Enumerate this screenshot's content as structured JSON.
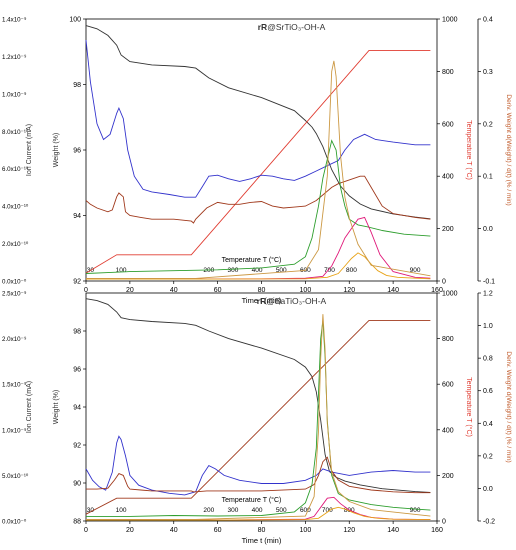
{
  "chart_data": [
    {
      "type": "line",
      "title_prefix": "rR",
      "title_suffix": "@SrTiO₃-OH-A",
      "xlabel": "Time t (min)",
      "xlim": [
        0,
        160
      ],
      "xticks": [
        0,
        20,
        40,
        60,
        80,
        100,
        120,
        140,
        160
      ],
      "axes": {
        "ion": {
          "label": "Ion Current (mA)",
          "lim": [
            0,
            1.4e-09
          ],
          "ticks": [
            "0.0x10⁻⁰",
            "2.0x10⁻¹⁰",
            "4.0x10⁻¹⁰",
            "6.0x10⁻¹⁰",
            "8.0x10⁻¹⁰",
            "1.0x10⁻⁹",
            "1.2x10⁻⁹",
            "1.4x10⁻⁹"
          ]
        },
        "weight": {
          "label": "Weight (%)",
          "lim": [
            92,
            100
          ],
          "ticks": [
            92,
            94,
            96,
            98,
            100
          ]
        },
        "temp": {
          "label": "Temperature T (°C)",
          "lim": [
            0,
            1000
          ],
          "ticks": [
            0,
            200,
            400,
            600,
            800,
            1000
          ]
        },
        "deriv": {
          "label": "Deriv. Weight d(Weight) / d(t) (% / min)",
          "lim": [
            -0.1,
            0.4
          ],
          "ticks": [
            -0.1,
            0.0,
            0.1,
            0.2,
            0.3,
            0.4
          ]
        }
      },
      "temperature_markers": {
        "label": "Temperature T (°C)",
        "values": [
          {
            "label": "30",
            "t": 2
          },
          {
            "label": "100",
            "t": 16
          },
          {
            "label": "200",
            "t": 56
          },
          {
            "label": "300",
            "t": 67
          },
          {
            "label": "400",
            "t": 78
          },
          {
            "label": "500",
            "t": 89
          },
          {
            "label": "600",
            "t": 100
          },
          {
            "label": "700",
            "t": 111
          },
          {
            "label": "800",
            "t": 121
          },
          {
            "label": "900",
            "t": 150
          }
        ]
      },
      "series": [
        {
          "color": "#333333",
          "axis": "weight",
          "x": [
            0,
            5,
            10,
            14,
            16,
            20,
            30,
            45,
            50,
            56,
            65,
            80,
            95,
            100,
            103,
            105,
            108,
            112,
            116,
            120,
            125,
            130,
            140,
            150,
            157
          ],
          "y": [
            99.8,
            99.7,
            99.5,
            99.2,
            98.9,
            98.7,
            98.6,
            98.55,
            98.5,
            98.2,
            97.9,
            97.6,
            97.2,
            96.9,
            96.7,
            96.5,
            96.1,
            95.4,
            94.9,
            94.6,
            94.35,
            94.2,
            94.05,
            93.95,
            93.9
          ]
        },
        {
          "color": "#e03c31",
          "axis": "temp",
          "x": [
            0,
            14,
            48,
            129,
            157
          ],
          "y": [
            30,
            100,
            100,
            880,
            880
          ]
        },
        {
          "color": "#3333cc",
          "axis": "deriv",
          "x": [
            0,
            2,
            5,
            8,
            11,
            14,
            15,
            17,
            19,
            22,
            26,
            30,
            38,
            45,
            50,
            53,
            56,
            60,
            65,
            70,
            75,
            80,
            85,
            90,
            95,
            100,
            105,
            110,
            115,
            118,
            122,
            127,
            132,
            140,
            150,
            157
          ],
          "y": [
            0.36,
            0.28,
            0.2,
            0.17,
            0.18,
            0.22,
            0.23,
            0.21,
            0.15,
            0.1,
            0.075,
            0.07,
            0.065,
            0.06,
            0.06,
            0.08,
            0.1,
            0.102,
            0.095,
            0.09,
            0.095,
            0.102,
            0.1,
            0.095,
            0.092,
            0.1,
            0.11,
            0.12,
            0.13,
            0.15,
            0.17,
            0.18,
            0.17,
            0.165,
            0.16,
            0.16
          ]
        },
        {
          "color": "#a0391c",
          "axis": "ion",
          "x": [
            0,
            2,
            5,
            10,
            12,
            14,
            15,
            17,
            18,
            20,
            25,
            30,
            40,
            48,
            49,
            50,
            55,
            60,
            65,
            70,
            75,
            80,
            85,
            90,
            95,
            100,
            105,
            108,
            112,
            115,
            120,
            125,
            127,
            130,
            135,
            140,
            150,
            157
          ],
          "y": [
            4.3e-10,
            4.1e-10,
            3.9e-10,
            3.7e-10,
            3.8e-10,
            4.5e-10,
            4.7e-10,
            4.5e-10,
            3.7e-10,
            3.5e-10,
            3.4e-10,
            3.3e-10,
            3.3e-10,
            3.2e-10,
            3.1e-10,
            3.3e-10,
            3.9e-10,
            4.2e-10,
            4.1e-10,
            4.1e-10,
            4.2e-10,
            4.25e-10,
            4e-10,
            3.9e-10,
            3.95e-10,
            4e-10,
            4.3e-10,
            4.6e-10,
            5e-10,
            5.2e-10,
            5.4e-10,
            5.6e-10,
            5.6e-10,
            5e-10,
            4e-10,
            3.6e-10,
            3.4e-10,
            3.3e-10
          ]
        },
        {
          "color": "#2e9e2e",
          "axis": "ion",
          "x": [
            0,
            10,
            20,
            40,
            60,
            80,
            95,
            100,
            103,
            106,
            108,
            110,
            112,
            114,
            116,
            118,
            120,
            124,
            128,
            135,
            145,
            157
          ],
          "y": [
            4e-11,
            4.5e-11,
            5e-11,
            5.5e-11,
            6e-11,
            7e-11,
            9e-11,
            1.3e-10,
            2.3e-10,
            4e-10,
            5.5e-10,
            6.5e-10,
            7.5e-10,
            7e-10,
            5e-10,
            4e-10,
            3.3e-10,
            3e-10,
            2.9e-10,
            2.7e-10,
            2.5e-10,
            2.4e-10
          ]
        },
        {
          "color": "#e0197a",
          "axis": "ion",
          "x": [
            0,
            40,
            80,
            100,
            108,
            112,
            115,
            118,
            121,
            124,
            127,
            130,
            134,
            140,
            150,
            157
          ],
          "y": [
            1e-11,
            1e-11,
            1.2e-11,
            1.5e-11,
            2.5e-11,
            8e-11,
            1.5e-10,
            2.3e-10,
            2.8e-10,
            3.3e-10,
            3.4e-10,
            2.6e-10,
            1.4e-10,
            5e-11,
            2e-11,
            1.5e-11
          ]
        },
        {
          "color": "#e8a317",
          "axis": "ion",
          "x": [
            0,
            60,
            100,
            110,
            115,
            118,
            121,
            124,
            127,
            130,
            133,
            137,
            142,
            150,
            157
          ],
          "y": [
            1e-11,
            1e-11,
            1.2e-11,
            2e-11,
            4e-11,
            8e-11,
            1.2e-10,
            1.5e-10,
            1.3e-10,
            9e-11,
            5.5e-11,
            3e-11,
            2e-11,
            1.5e-11,
            1.2e-11
          ]
        },
        {
          "color": "#cc9944",
          "axis": "deriv",
          "x": [
            0,
            50,
            100,
            106,
            110,
            112,
            113,
            114,
            116,
            118,
            120,
            124,
            130,
            157
          ],
          "y": [
            -0.095,
            -0.095,
            -0.08,
            -0.04,
            0.1,
            0.3,
            0.32,
            0.29,
            0.14,
            0.06,
            0.02,
            -0.03,
            -0.07,
            -0.09
          ]
        }
      ]
    },
    {
      "type": "line",
      "title_prefix": "rR",
      "title_suffix": "@BaTiO₃-OH-A",
      "xlabel": "Time t (min)",
      "xlim": [
        0,
        160
      ],
      "xticks": [
        0,
        20,
        40,
        60,
        80,
        100,
        120,
        140,
        160
      ],
      "axes": {
        "ion": {
          "label": "Ion Current (mA)",
          "lim": [
            0,
            2.5e-09
          ],
          "ticks": [
            "0.0x10⁻⁰",
            "5.0x10⁻¹⁰",
            "1.0x10⁻⁹",
            "1.5x10⁻⁹",
            "2.0x10⁻⁹",
            "2.5x10⁻⁹"
          ]
        },
        "weight": {
          "label": "Weight (%)",
          "lim": [
            88,
            100
          ],
          "ticks": [
            88,
            90,
            92,
            94,
            96,
            98
          ]
        },
        "temp": {
          "label": "Temperature T (°C)",
          "lim": [
            0,
            1000
          ],
          "ticks": [
            0,
            200,
            400,
            600,
            800,
            1000
          ]
        },
        "deriv": {
          "label": "Deriv. Weight d(Weight) / d(t) (% / min)",
          "lim": [
            -0.2,
            1.2
          ],
          "ticks": [
            -0.2,
            0.0,
            0.2,
            0.4,
            0.6,
            0.8,
            1.0,
            1.2
          ]
        }
      },
      "temperature_markers": {
        "label": "Temperature T (°C)",
        "values": [
          {
            "label": "30",
            "t": 2
          },
          {
            "label": "100",
            "t": 16
          },
          {
            "label": "200",
            "t": 56
          },
          {
            "label": "300",
            "t": 67
          },
          {
            "label": "400",
            "t": 78
          },
          {
            "label": "500",
            "t": 89
          },
          {
            "label": "600",
            "t": 100
          },
          {
            "label": "700",
            "t": 110
          },
          {
            "label": "800",
            "t": 120
          },
          {
            "label": "900",
            "t": 150
          }
        ]
      },
      "series": [
        {
          "color": "#333333",
          "axis": "weight",
          "x": [
            0,
            5,
            10,
            14,
            16,
            20,
            30,
            45,
            50,
            56,
            65,
            80,
            95,
            100,
            103,
            105,
            107,
            109,
            111,
            114,
            118,
            125,
            135,
            150,
            157
          ],
          "y": [
            99.7,
            99.6,
            99.4,
            99.0,
            98.7,
            98.6,
            98.5,
            98.4,
            98.3,
            98.0,
            97.6,
            97.1,
            96.5,
            96.1,
            95.6,
            94.8,
            93.3,
            91.5,
            90.6,
            90.3,
            90.1,
            89.9,
            89.7,
            89.55,
            89.5
          ]
        },
        {
          "color": "#a0391c",
          "axis": "temp",
          "x": [
            0,
            14,
            48,
            129,
            157
          ],
          "y": [
            30,
            100,
            100,
            880,
            880
          ]
        },
        {
          "color": "#3333cc",
          "axis": "deriv",
          "x": [
            0,
            3,
            6,
            9,
            12,
            14,
            15,
            16,
            18,
            20,
            24,
            30,
            38,
            45,
            50,
            53,
            56,
            59,
            63,
            70,
            80,
            90,
            100,
            105,
            108,
            112,
            120,
            130,
            140,
            150,
            157
          ],
          "y": [
            0.12,
            0.05,
            0.01,
            -0.01,
            0.1,
            0.28,
            0.32,
            0.3,
            0.2,
            0.08,
            0.02,
            -0.01,
            -0.03,
            -0.04,
            -0.02,
            0.08,
            0.14,
            0.12,
            0.08,
            0.05,
            0.03,
            0.03,
            0.05,
            0.08,
            0.12,
            0.1,
            0.08,
            0.1,
            0.11,
            0.1,
            0.1
          ]
        },
        {
          "color": "#a0391c",
          "axis": "ion",
          "x": [
            0,
            5,
            10,
            13,
            15,
            17,
            19,
            20,
            25,
            30,
            40,
            48,
            49,
            50,
            55,
            60,
            80,
            100,
            104,
            106,
            108,
            110,
            112,
            115,
            120,
            130,
            140,
            150,
            157
          ],
          "y": [
            3.5e-10,
            3.5e-10,
            3.6e-10,
            4.5e-10,
            5.2e-10,
            5e-10,
            3.8e-10,
            3.5e-10,
            3.4e-10,
            3.3e-10,
            3.3e-10,
            3.3e-10,
            3.2e-10,
            3.2e-10,
            3.3e-10,
            3.3e-10,
            3.3e-10,
            3.5e-10,
            4e-10,
            5e-10,
            6.5e-10,
            7e-10,
            5.5e-10,
            4.5e-10,
            3.8e-10,
            3.4e-10,
            3.2e-10,
            3.1e-10,
            3.1e-10
          ]
        },
        {
          "color": "#2e9e2e",
          "axis": "ion",
          "x": [
            0,
            20,
            40,
            60,
            80,
            95,
            100,
            103,
            105,
            106,
            107,
            108,
            109,
            110,
            112,
            115,
            120,
            130,
            140,
            150,
            157
          ],
          "y": [
            5e-11,
            5e-11,
            6e-11,
            5.5e-11,
            6e-11,
            1e-10,
            2e-10,
            4e-10,
            8e-10,
            1.4e-09,
            2e-09,
            2.2e-09,
            1.8e-09,
            1.1e-09,
            5e-10,
            3e-10,
            2.3e-10,
            1.8e-10,
            1.5e-10,
            1.3e-10,
            1.2e-10
          ]
        },
        {
          "color": "#e0197a",
          "axis": "ion",
          "x": [
            0,
            60,
            100,
            104,
            107,
            110,
            113,
            116,
            120,
            125,
            130,
            140,
            157
          ],
          "y": [
            1e-11,
            1e-11,
            2e-11,
            5e-11,
            1.5e-10,
            2.5e-10,
            2.6e-10,
            1.9e-10,
            1.2e-10,
            7e-11,
            4e-11,
            2e-11,
            1.5e-11
          ]
        },
        {
          "color": "#e8a317",
          "axis": "ion",
          "x": [
            0,
            60,
            100,
            106,
            109,
            112,
            115,
            118,
            122,
            127,
            133,
            140,
            157
          ],
          "y": [
            1e-11,
            1e-11,
            1.5e-11,
            3e-11,
            8e-11,
            1.3e-10,
            1.5e-10,
            1.3e-10,
            9e-11,
            5e-11,
            3e-11,
            2e-11,
            1.5e-11
          ]
        },
        {
          "color": "#cc9944",
          "axis": "deriv",
          "x": [
            0,
            50,
            100,
            104,
            106,
            107,
            108,
            109,
            110,
            112,
            115,
            120,
            130,
            157
          ],
          "y": [
            -0.19,
            -0.19,
            -0.17,
            -0.05,
            0.35,
            0.8,
            1.07,
            0.85,
            0.4,
            0.1,
            -0.02,
            -0.08,
            -0.13,
            -0.17
          ]
        }
      ]
    }
  ]
}
